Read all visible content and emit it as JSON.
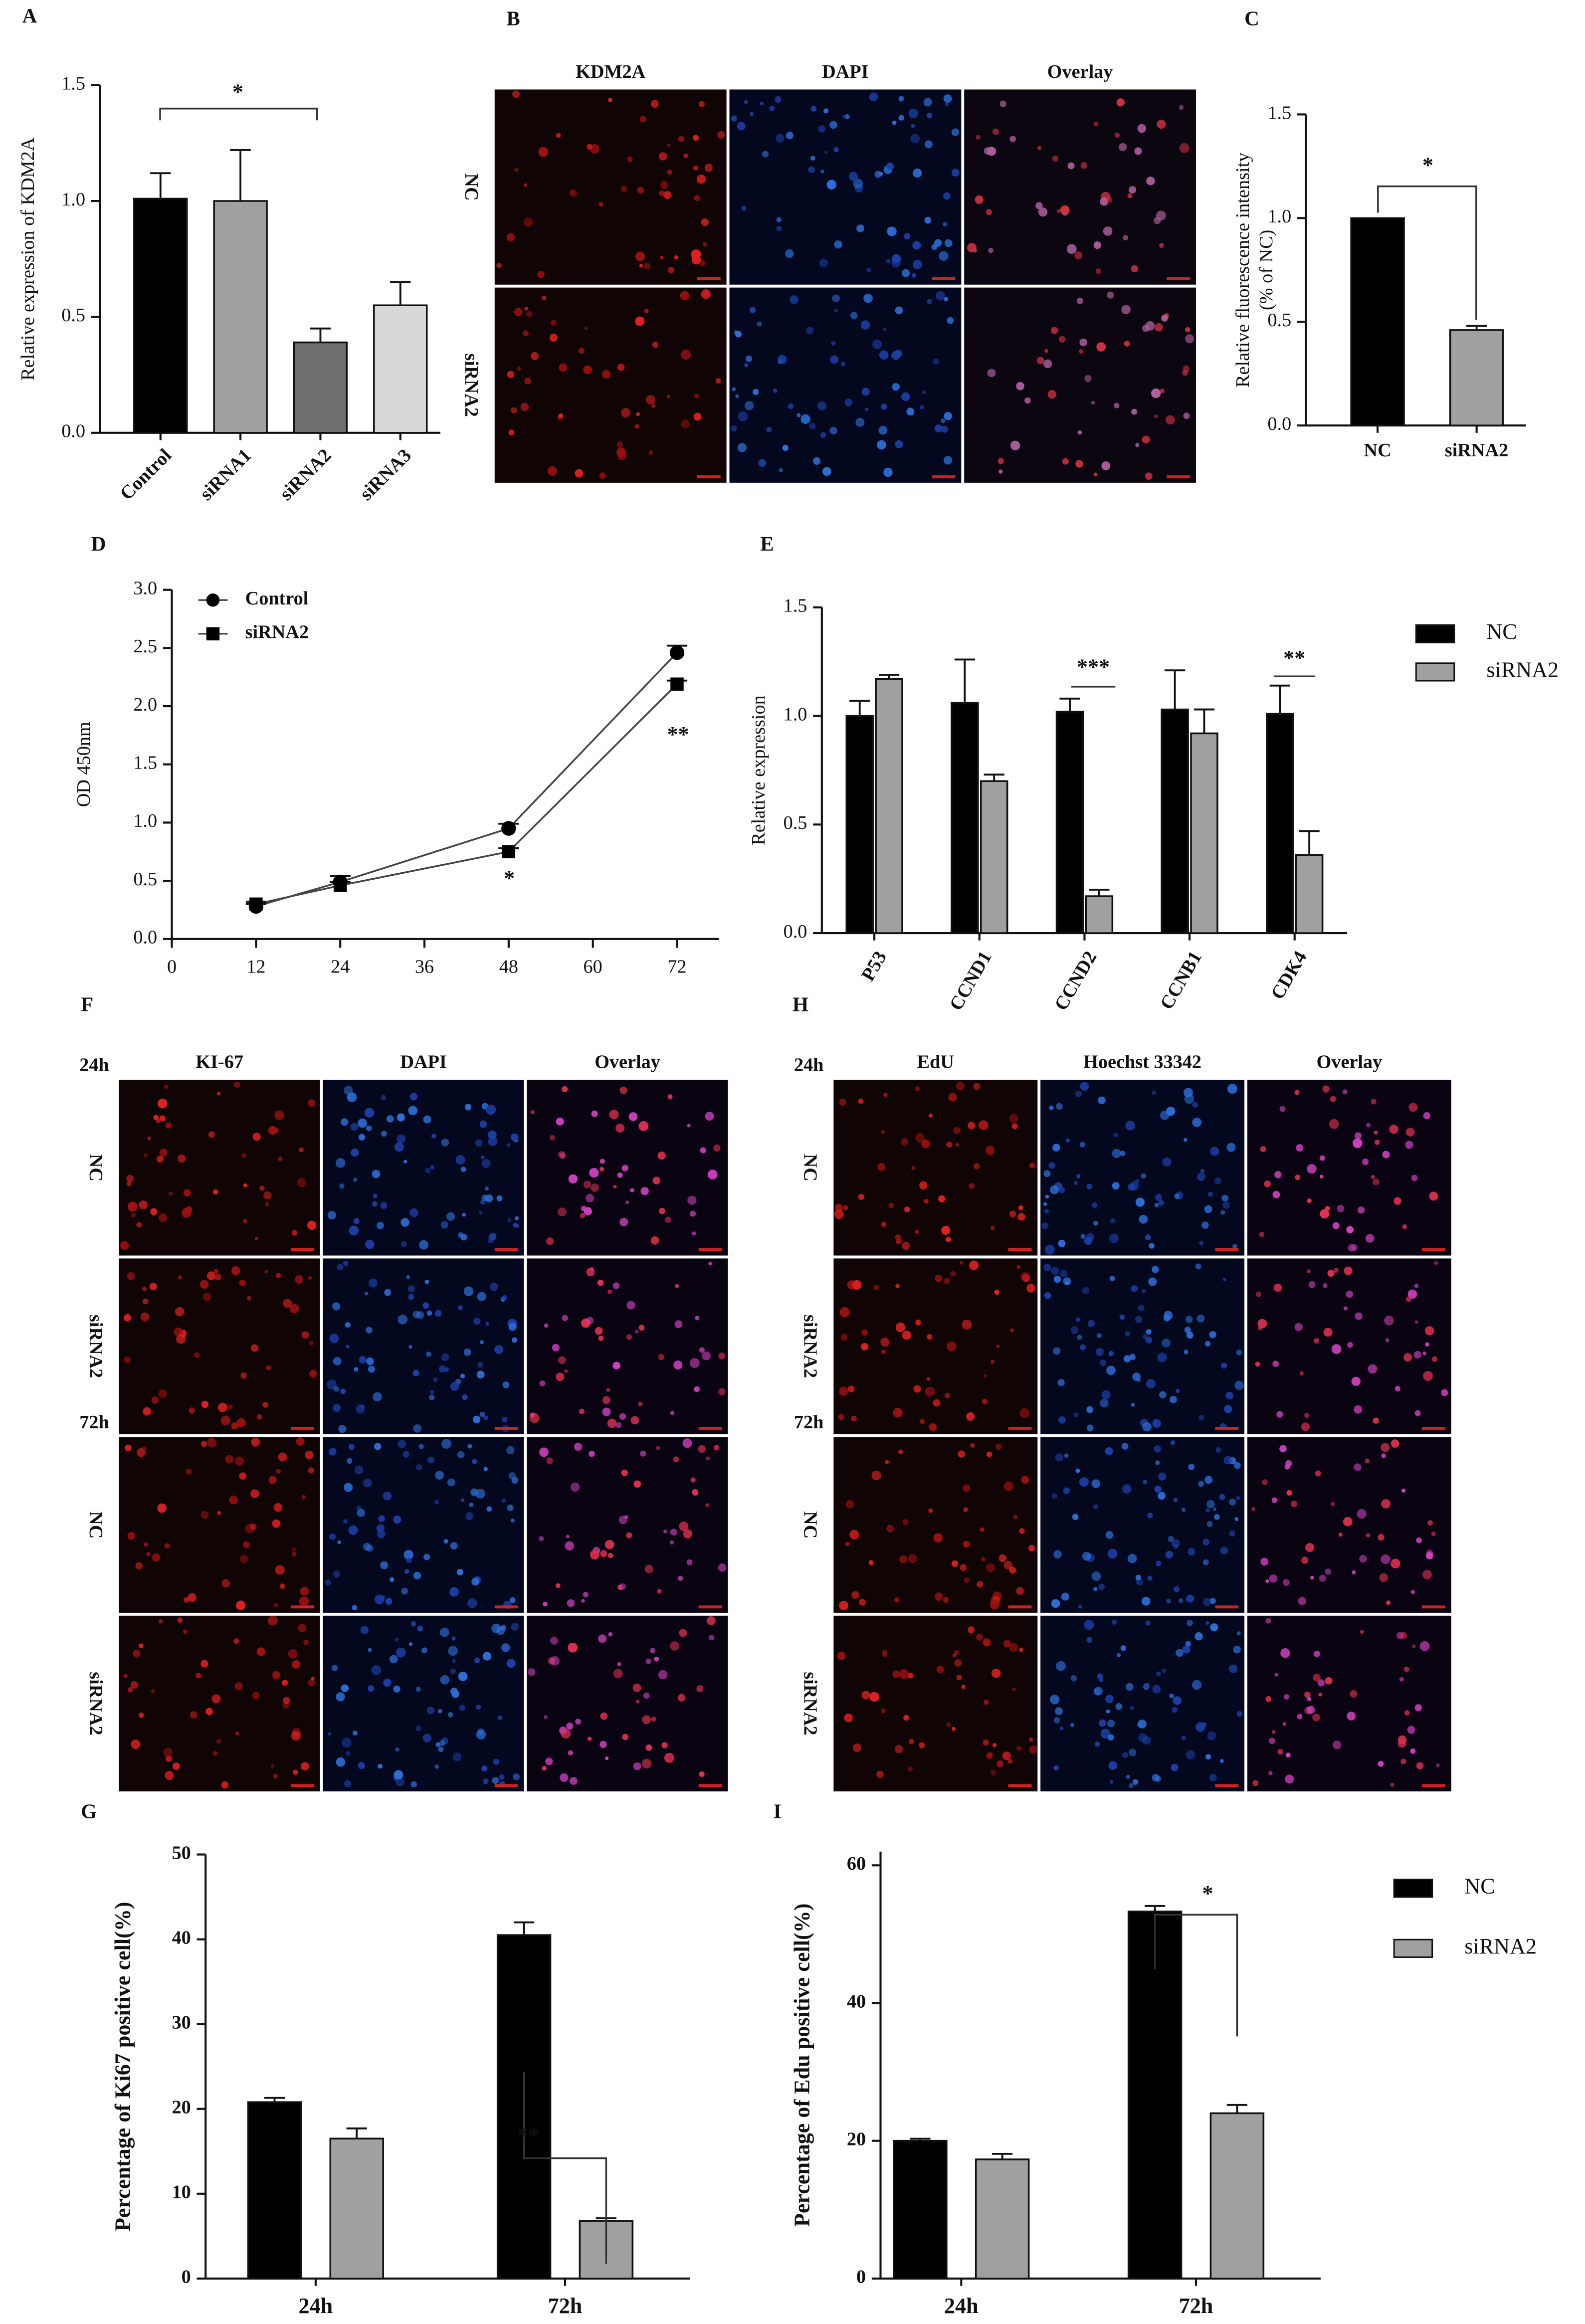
{
  "chart_data": [
    {
      "type": "bar",
      "panel": "A",
      "ylabel": "Relative expression of KDM2A",
      "categories": [
        "Control",
        "siRNA1",
        "siRNA2",
        "siRNA3"
      ],
      "values": [
        1.01,
        1.0,
        0.39,
        0.55
      ],
      "errors": [
        0.11,
        0.22,
        0.06,
        0.1
      ],
      "colors": [
        "#000000",
        "#a0a0a0",
        "#707070",
        "#d8d8d8"
      ],
      "ylim": [
        0,
        1.5
      ],
      "yticks": [
        {
          "value": 0,
          "label": "0.0"
        },
        {
          "value": 0.5,
          "label": "0.5"
        },
        {
          "value": 1,
          "label": "1.0"
        },
        {
          "value": 1.5,
          "label": "1.5"
        }
      ],
      "annotations": [
        "*"
      ]
    },
    {
      "type": "image",
      "panel": "B",
      "column_labels": [
        "KDM2A",
        "DAPI",
        "Overlay"
      ],
      "row_labels": [
        "NC",
        "siRNA2"
      ]
    },
    {
      "type": "bar",
      "panel": "C",
      "ylabel": [
        "Relative fluorescence intensity",
        "(% of NC)"
      ],
      "categories": [
        "NC",
        "siRNA2"
      ],
      "values": [
        1.0,
        0.46
      ],
      "errors": [
        0,
        0.02
      ],
      "colors": [
        "#000000",
        "#a0a0a0"
      ],
      "ylim": [
        0,
        1.5
      ],
      "yticks": [
        {
          "value": 0,
          "label": "0.0"
        },
        {
          "value": 0.5,
          "label": "0.5"
        },
        {
          "value": 1,
          "label": "1.0"
        },
        {
          "value": 1.5,
          "label": "1.5"
        }
      ],
      "annotations": [
        "*"
      ]
    },
    {
      "type": "line",
      "panel": "D",
      "ylabel": "OD 450nm",
      "x": [
        12,
        24,
        48,
        72
      ],
      "series": [
        {
          "name": "Control",
          "color": "#000000",
          "values": [
            0.28,
            0.49,
            0.95,
            2.46
          ],
          "errors": [
            0.02,
            0.05,
            0.04,
            0.06
          ]
        },
        {
          "name": "siRNA2",
          "color": "#000000",
          "values": [
            0.3,
            0.46,
            0.75,
            2.19
          ],
          "errors": [
            0.02,
            0.03,
            0.03,
            0.03
          ]
        }
      ],
      "xlim": [
        0,
        78
      ],
      "xticks": [
        0,
        12,
        24,
        36,
        48,
        60,
        72
      ],
      "ylim": [
        0,
        3
      ],
      "yticks": [
        {
          "value": 0,
          "label": "0.0"
        },
        {
          "value": 0.5,
          "label": "0.5"
        },
        {
          "value": 1,
          "label": "1.0"
        },
        {
          "value": 1.5,
          "label": "1.5"
        },
        {
          "value": 2,
          "label": "2.0"
        },
        {
          "value": 2.5,
          "label": "2.5"
        },
        {
          "value": 3,
          "label": "3.0"
        }
      ],
      "annotations": [
        "*",
        "**"
      ]
    },
    {
      "type": "grouped_bar",
      "panel": "E",
      "ylabel": "Relative expression",
      "categories": [
        "P53",
        "CCND1",
        "CCND2",
        "CCNB1",
        "CDK4"
      ],
      "series": [
        {
          "name": "NC",
          "color": "#000000",
          "values": [
            1.0,
            1.06,
            1.02,
            1.03,
            1.01
          ],
          "errors": [
            0.07,
            0.2,
            0.06,
            0.18,
            0.13
          ]
        },
        {
          "name": "siRNA2",
          "color": "#a0a0a0",
          "values": [
            1.17,
            0.7,
            0.17,
            0.92,
            0.36
          ],
          "errors": [
            0.02,
            0.03,
            0.03,
            0.11,
            0.11
          ]
        }
      ],
      "ylim": [
        0,
        1.5
      ],
      "yticks": [
        {
          "value": 0,
          "label": "0.0"
        },
        {
          "value": 0.5,
          "label": "0.5"
        },
        {
          "value": 1,
          "label": "1.0"
        },
        {
          "value": 1.5,
          "label": "1.5"
        }
      ],
      "annotations": [
        "***",
        "**"
      ]
    },
    {
      "type": "image",
      "panel": "F",
      "column_labels": [
        "KI-67",
        "DAPI",
        "Overlay"
      ],
      "row_labels": [
        "NC",
        "siRNA2",
        "NC",
        "siRNA2"
      ],
      "group_labels": [
        "24h",
        "72h"
      ]
    },
    {
      "type": "grouped_bar",
      "panel": "G",
      "ylabel": "Percentage of Ki67 positive cell(%)",
      "categories": [
        "24h",
        "72h"
      ],
      "series": [
        {
          "name": "NC",
          "color": "#000000",
          "values": [
            20.8,
            40.5
          ],
          "errors": [
            0.5,
            1.5
          ]
        },
        {
          "name": "siRNA2",
          "color": "#a0a0a0",
          "values": [
            16.5,
            6.8
          ],
          "errors": [
            1.2,
            0.3
          ]
        }
      ],
      "ylim": [
        0,
        50
      ],
      "yticks": [
        0,
        10,
        20,
        30,
        40,
        50
      ],
      "annotations": [
        "**"
      ]
    },
    {
      "type": "image",
      "panel": "H",
      "column_labels": [
        "EdU",
        "Hoechst 33342",
        "Overlay"
      ],
      "row_labels": [
        "NC",
        "siRNA2",
        "NC",
        "siRNA2"
      ],
      "group_labels": [
        "24h",
        "72h"
      ]
    },
    {
      "type": "grouped_bar",
      "panel": "I",
      "ylabel": "Percentage of Edu positive cell(%)",
      "categories": [
        "24h",
        "72h"
      ],
      "series": [
        {
          "name": "NC",
          "color": "#000000",
          "values": [
            20,
            53.3
          ],
          "errors": [
            0.3,
            0.8
          ]
        },
        {
          "name": "siRNA2",
          "color": "#a0a0a0",
          "values": [
            17.3,
            24
          ],
          "errors": [
            0.8,
            1.2
          ]
        }
      ],
      "ylim": [
        0,
        62
      ],
      "yticks": [
        0,
        20,
        40,
        60
      ],
      "annotations": [
        "*"
      ]
    }
  ]
}
